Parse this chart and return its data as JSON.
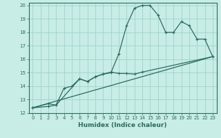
{
  "xlabel": "Humidex (Indice chaleur)",
  "bg_color": "#c8ece6",
  "grid_color": "#9dd4cc",
  "line_color": "#2a6b5e",
  "xlim": [
    -0.5,
    23.5
  ],
  "ylim": [
    12,
    20.2
  ],
  "xticks": [
    0,
    1,
    2,
    3,
    4,
    5,
    6,
    7,
    8,
    9,
    10,
    11,
    12,
    13,
    14,
    15,
    16,
    17,
    18,
    19,
    20,
    21,
    22,
    23
  ],
  "yticks": [
    12,
    13,
    14,
    15,
    16,
    17,
    18,
    19,
    20
  ],
  "line1_x": [
    0,
    2,
    3,
    4,
    5,
    6,
    7,
    8,
    9,
    10,
    11,
    12,
    13,
    14,
    15,
    16,
    17,
    18,
    19,
    20,
    21,
    22,
    23
  ],
  "line1_y": [
    12.4,
    12.7,
    12.6,
    13.85,
    14.0,
    14.55,
    14.35,
    14.7,
    14.9,
    15.0,
    16.4,
    18.5,
    19.8,
    20.0,
    20.0,
    19.3,
    18.0,
    18.0,
    18.8,
    18.5,
    17.5,
    17.5,
    16.2
  ],
  "line2_x": [
    0,
    2,
    3,
    6,
    7,
    8,
    9,
    10,
    11,
    12,
    13,
    14,
    23
  ],
  "line2_y": [
    12.4,
    12.5,
    12.6,
    14.55,
    14.35,
    14.7,
    14.9,
    15.05,
    14.95,
    14.95,
    14.9,
    15.05,
    16.2
  ],
  "line3_x": [
    0,
    23
  ],
  "line3_y": [
    12.4,
    16.2
  ],
  "marker_size": 3,
  "linewidth": 0.9,
  "tick_fontsize": 5,
  "xlabel_fontsize": 6.5
}
